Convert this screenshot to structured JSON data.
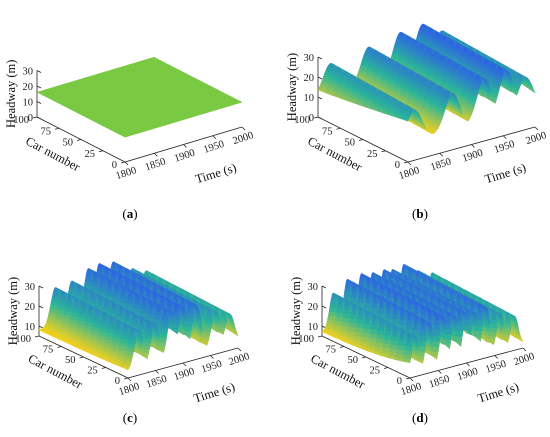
{
  "chart_data": [
    {
      "type": "surface",
      "panel": "(a)",
      "xlabel": "Time (s)",
      "ylabel": "Car number",
      "zlabel": "Headway (m)",
      "x_ticks": [
        "1800",
        "1850",
        "1900",
        "1950",
        "2000"
      ],
      "y_ticks": [
        "0",
        "25",
        "50",
        "75",
        "100"
      ],
      "z_ticks": [
        "0",
        "10",
        "20",
        "30"
      ],
      "xlim": [
        1800,
        2000
      ],
      "ylim": [
        0,
        100
      ],
      "zlim": [
        0,
        30
      ],
      "surface": "flat",
      "headway_constant": 16,
      "color": "#7ac943"
    },
    {
      "type": "surface",
      "panel": "(b)",
      "xlabel": "Time (s)",
      "ylabel": "Car number",
      "zlabel": "Headway (m)",
      "x_ticks": [
        "1800",
        "1850",
        "1900",
        "1950",
        "2000"
      ],
      "y_ticks": [
        "0",
        "25",
        "50",
        "75",
        "100"
      ],
      "z_ticks": [
        "0",
        "10",
        "20",
        "30"
      ],
      "xlim": [
        1800,
        2000
      ],
      "ylim": [
        0,
        100
      ],
      "zlim": [
        0,
        30
      ],
      "surface": "oscillating",
      "peak_times": [
        1810,
        1870,
        1920,
        1955,
        1985
      ],
      "peak_headways": [
        25,
        28,
        31,
        32,
        26
      ],
      "trough_headway": 10,
      "colormap": [
        "#f4d11d",
        "#2bb59a",
        "#2f63e6"
      ]
    },
    {
      "type": "surface",
      "panel": "(c)",
      "xlabel": "Time (s)",
      "ylabel": "Car number",
      "zlabel": "Headway (m)",
      "x_ticks": [
        "1800",
        "1850",
        "1900",
        "1950",
        "2000"
      ],
      "y_ticks": [
        "0",
        "25",
        "50",
        "75",
        "100"
      ],
      "z_ticks": [
        "10",
        "20",
        "30"
      ],
      "xlim": [
        1800,
        2000
      ],
      "ylim": [
        0,
        100
      ],
      "zlim": [
        5,
        30
      ],
      "surface": "oscillating",
      "peak_times": [
        1820,
        1850,
        1880,
        1900,
        1925,
        1960,
        1985
      ],
      "peak_headways": [
        27,
        28,
        32,
        33,
        32,
        26,
        23
      ],
      "trough_headway": 8,
      "colormap": [
        "#f4d11d",
        "#2bb59a",
        "#2f63e6"
      ]
    },
    {
      "type": "surface",
      "panel": "(d)",
      "xlabel": "Time (s)",
      "ylabel": "Car number",
      "zlabel": "Headway (m)",
      "x_ticks": [
        "1800",
        "1850",
        "1900",
        "1950",
        "2000"
      ],
      "y_ticks": [
        "0",
        "25",
        "50",
        "75",
        "100"
      ],
      "z_ticks": [
        "10",
        "20",
        "30"
      ],
      "xlim": [
        1800,
        2000
      ],
      "ylim": [
        0,
        100
      ],
      "zlim": [
        5,
        30
      ],
      "surface": "oscillating",
      "peak_times": [
        1810,
        1835,
        1860,
        1880,
        1900,
        1915,
        1935,
        1960,
        1985
      ],
      "peak_headways": [
        25,
        30,
        31,
        30,
        30,
        29,
        30,
        25,
        22
      ],
      "trough_headway": 7,
      "colormap": [
        "#f4d11d",
        "#2bb59a",
        "#2f63e6"
      ]
    }
  ],
  "captions": [
    "(a)",
    "(b)",
    "(c)",
    "(d)"
  ]
}
